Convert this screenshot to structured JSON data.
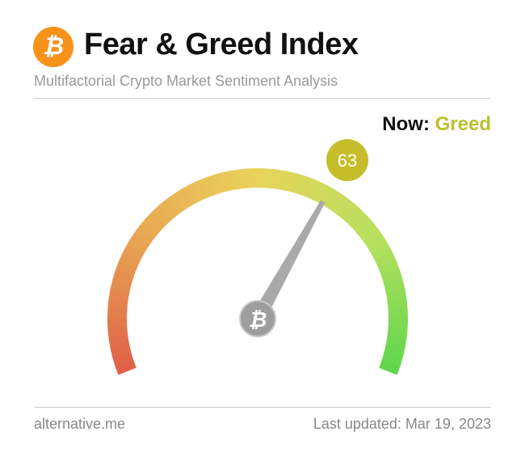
{
  "header": {
    "logo": "bitcoin-icon",
    "title": "Fear & Greed Index",
    "subtitle": "Multifactorial Crypto Market Sentiment Analysis"
  },
  "status": {
    "now_label": "Now:",
    "classification": "Greed",
    "value": "63",
    "badge_color": "#c6bd2a",
    "classification_color": "#b9c130"
  },
  "gauge": {
    "min": 0,
    "max": 100,
    "value": 63,
    "colors": [
      "#e0604a",
      "#e8a552",
      "#e8d45c",
      "#b7e05e",
      "#5ed64c"
    ],
    "hub_icon": "bitcoin-icon"
  },
  "footer": {
    "source": "alternative.me",
    "last_updated": "Last updated: Mar 19, 2023"
  }
}
